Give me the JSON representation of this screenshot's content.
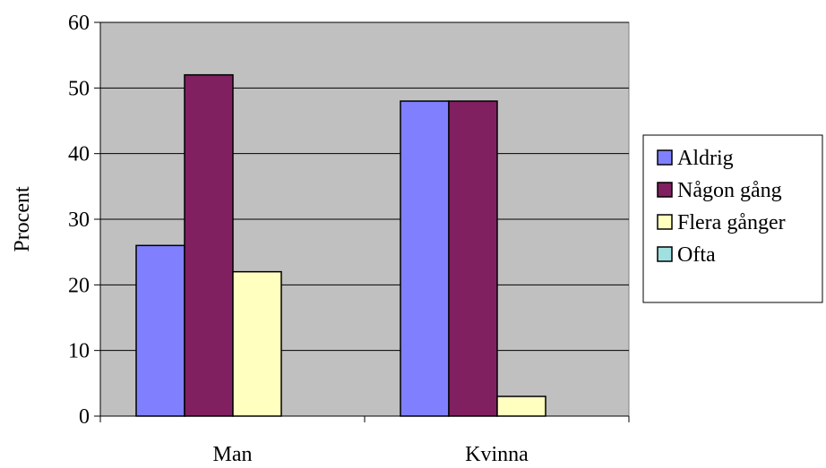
{
  "chart_data": {
    "type": "bar",
    "title": "",
    "xlabel": "",
    "ylabel": "Procent",
    "categories": [
      "Man",
      "Kvinna"
    ],
    "series": [
      {
        "name": "Aldrig",
        "values": [
          26,
          48
        ],
        "color": "#8080ff"
      },
      {
        "name": "Någon gång",
        "values": [
          52,
          48
        ],
        "color": "#802060"
      },
      {
        "name": "Flera gånger",
        "values": [
          22,
          3
        ],
        "color": "#ffffc0"
      },
      {
        "name": "Ofta",
        "values": [
          0,
          0
        ],
        "color": "#a0e0e0"
      }
    ],
    "ylim": [
      0,
      60
    ],
    "yticks": [
      0,
      10,
      20,
      30,
      40,
      50,
      60
    ],
    "grid": true,
    "plot_background": "#c0c0c0",
    "legend_position": "right"
  }
}
